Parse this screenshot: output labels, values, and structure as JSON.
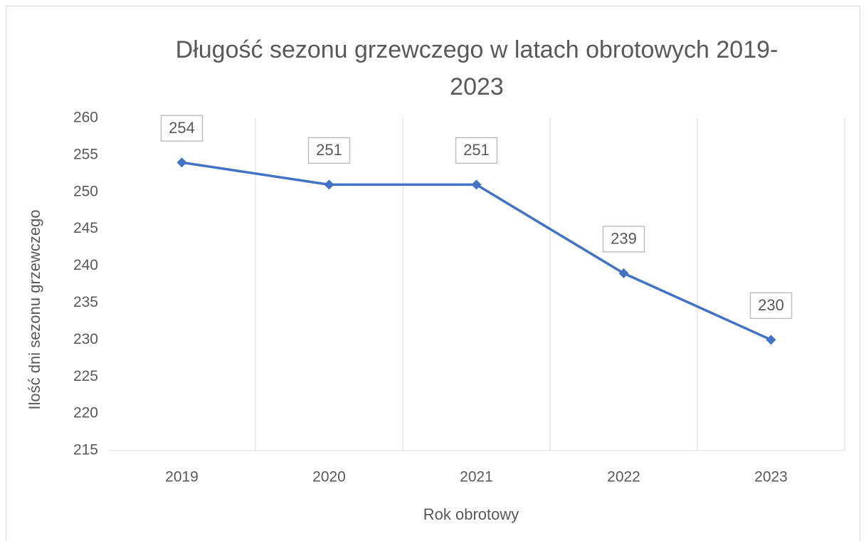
{
  "chart_data": {
    "type": "line",
    "title": "Długość sezonu grzewczego w latach obrotowych 2019-2023",
    "x_label": "Rok obrotowy",
    "y_label": "Ilość dni sezonu grzewczego",
    "categories": [
      "2019",
      "2020",
      "2021",
      "2022",
      "2023"
    ],
    "values": [
      254,
      251,
      251,
      239,
      230
    ],
    "color": "#4472c4",
    "ylim": [
      215,
      260
    ],
    "yticks": [
      215,
      220,
      225,
      230,
      235,
      240,
      245,
      250,
      255,
      260
    ],
    "grid": true,
    "data_labels": true
  }
}
